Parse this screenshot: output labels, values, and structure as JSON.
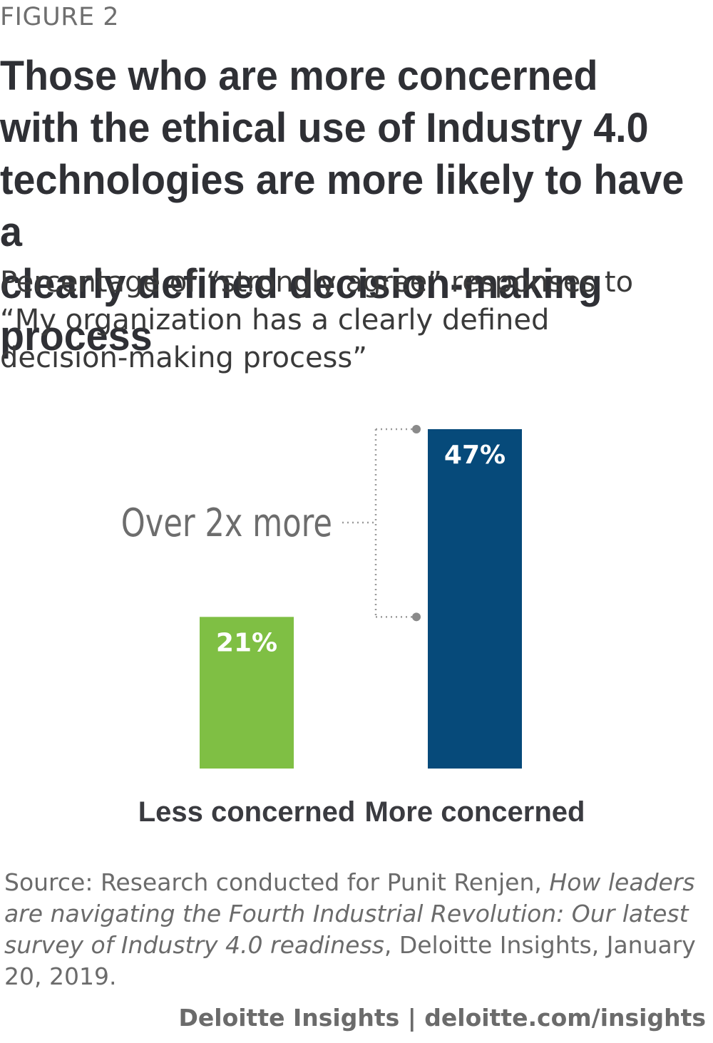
{
  "figure_label": "FIGURE 2",
  "title_lines": [
    "Those who are more concerned",
    "with the ethical use of Industry 4.0",
    "technologies are more likely to have a",
    "clearly defined decision-making process"
  ],
  "subtitle_lines": [
    "Percentage of “strongly agree” responses to",
    "“My organization has a clearly defined",
    "decision-making process”"
  ],
  "chart_data": {
    "type": "bar",
    "categories": [
      "Less concerned",
      "More concerned"
    ],
    "values": [
      21,
      47
    ],
    "value_labels": [
      "21%",
      "47%"
    ],
    "colors": [
      "#7fbf44",
      "#064a7a"
    ],
    "annotation": "Over 2x more",
    "ylim": [
      0,
      47
    ],
    "grid": false
  },
  "source": {
    "prefix": "Source: Research conducted for Punit Renjen, ",
    "italic": "How leaders are navigating the Fourth Industrial Revolution: Our latest survey of Industry 4.0 readiness",
    "suffix": ", Deloitte Insights, January 20, 2019."
  },
  "footer": "Deloitte Insights | deloitte.com/insights"
}
